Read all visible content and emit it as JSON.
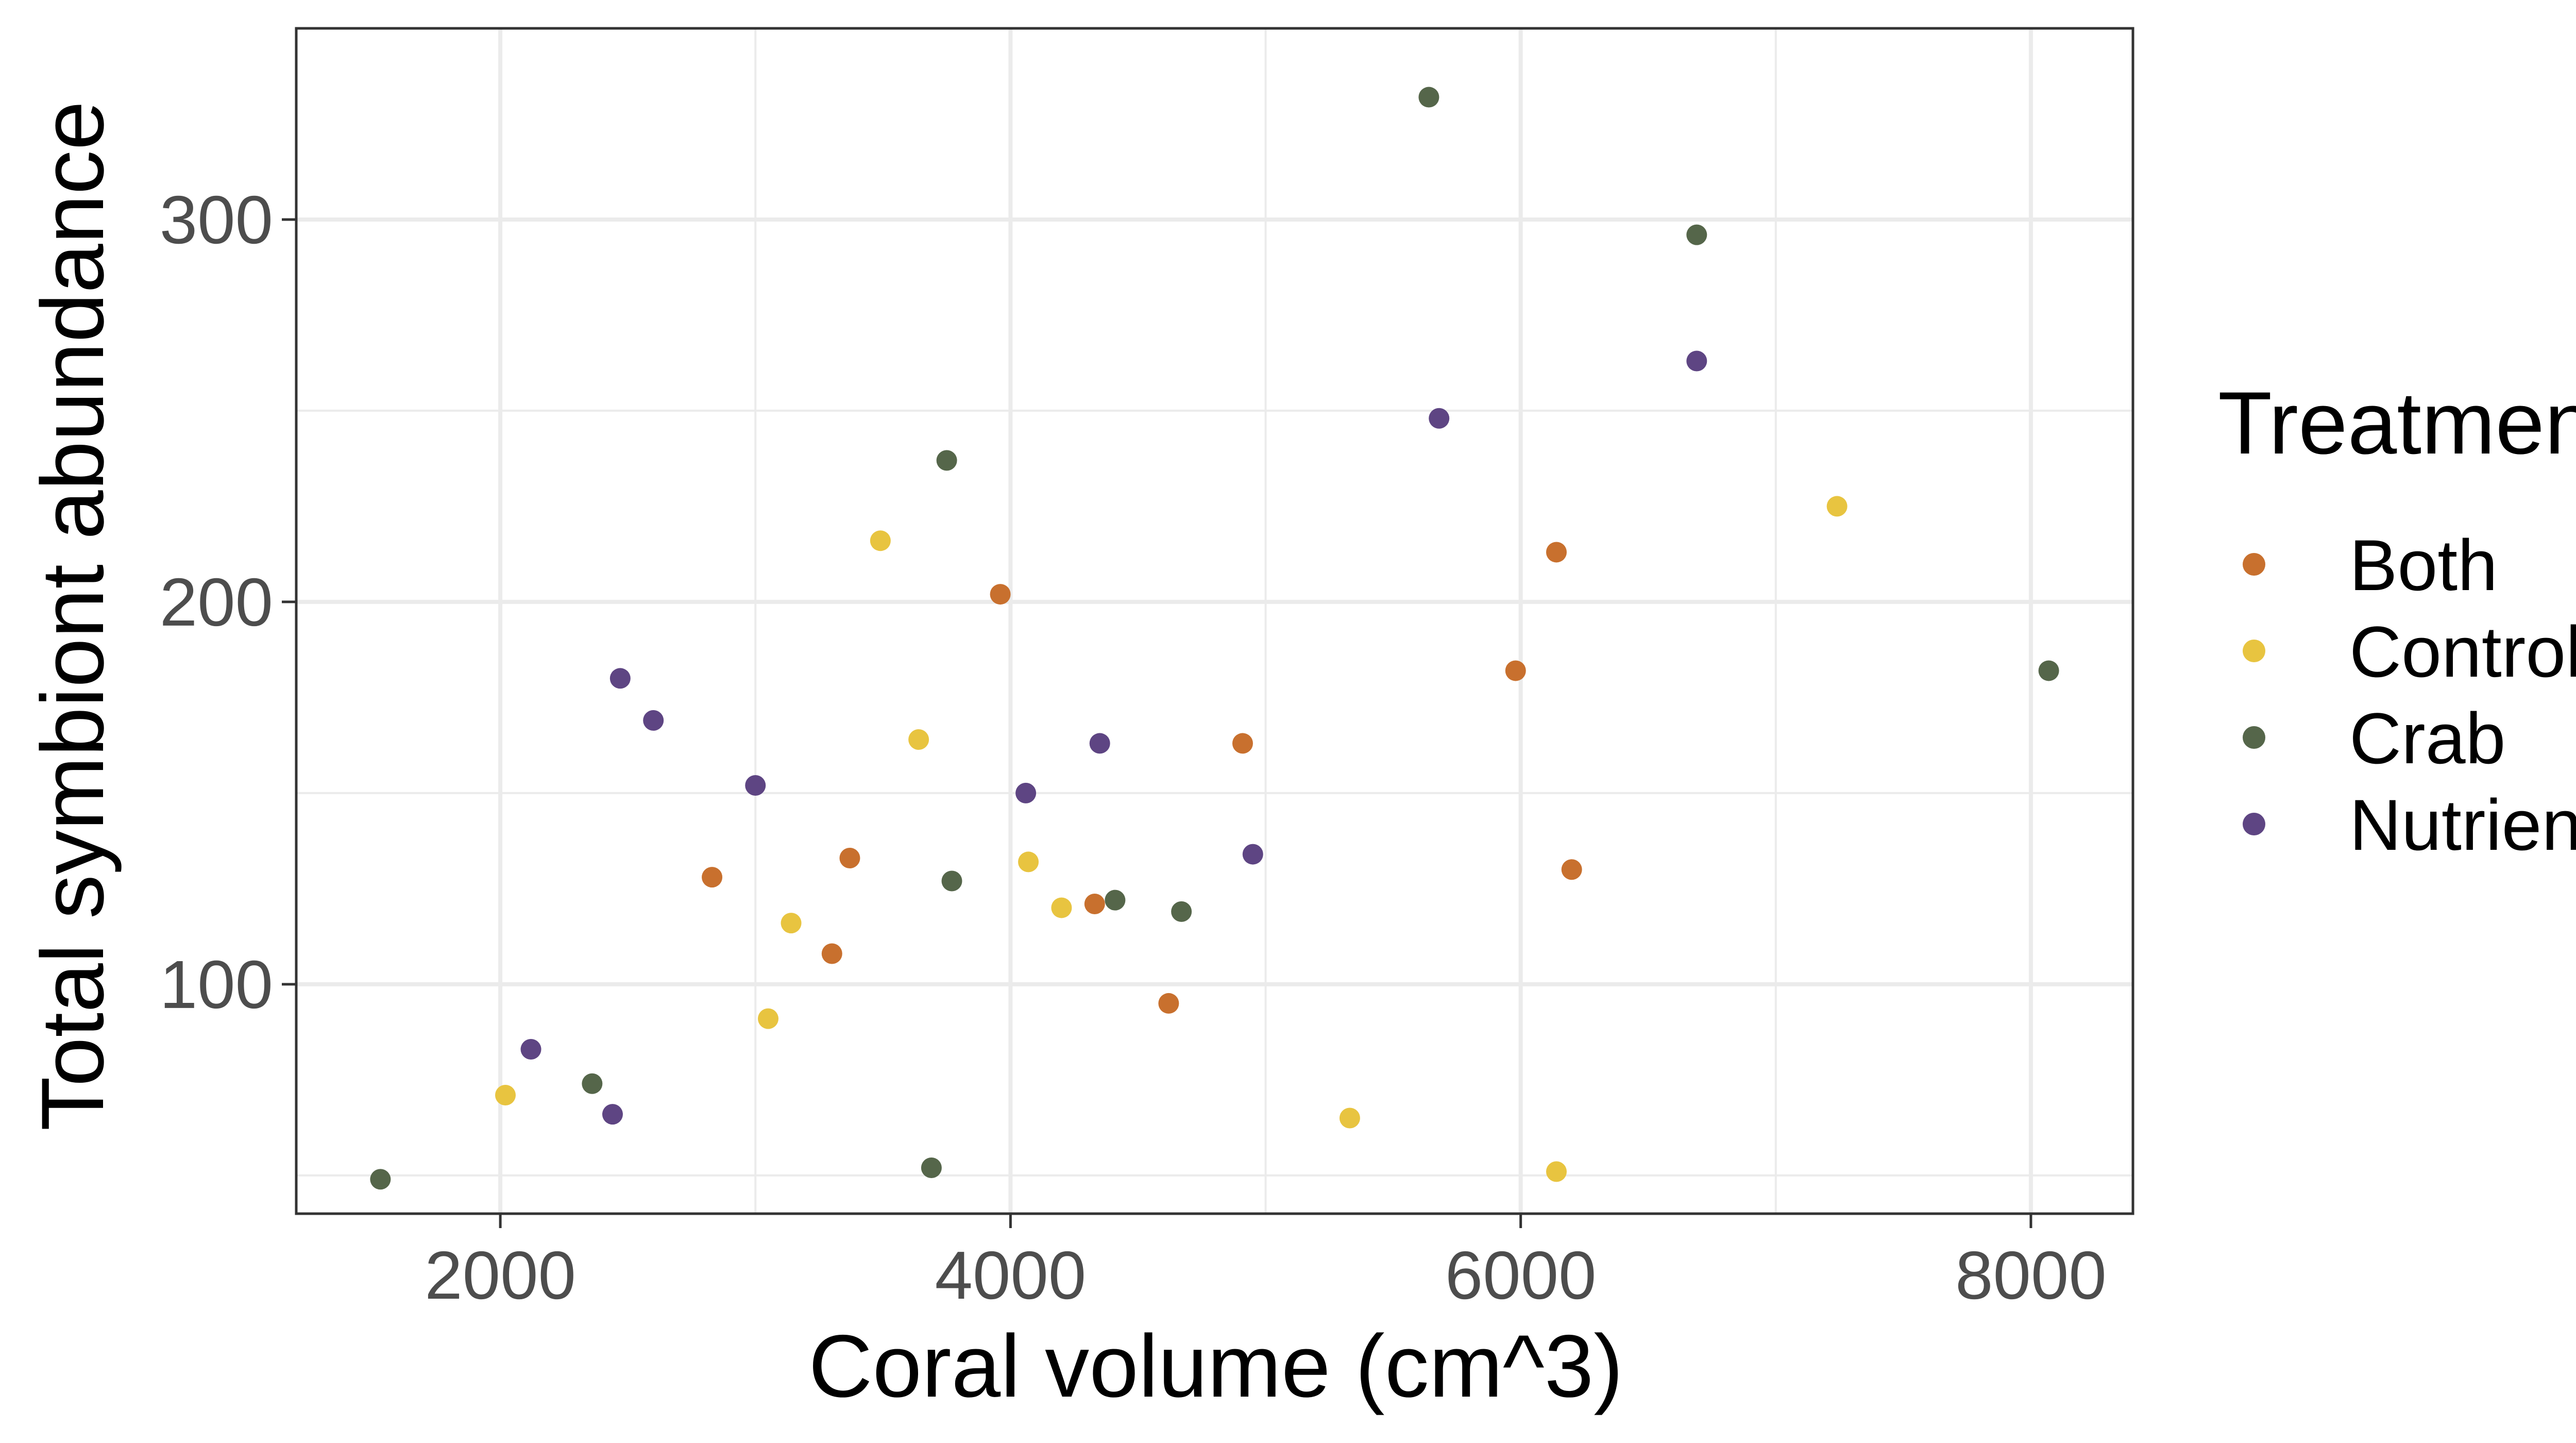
{
  "chart_data": {
    "type": "scatter",
    "xlabel": "Coral volume (cm^3)",
    "ylabel": "Total symbiont abundance",
    "xlim": [
      1200,
      8400
    ],
    "ylim": [
      40,
      350
    ],
    "xticks": [
      2000,
      4000,
      6000,
      8000
    ],
    "yticks": [
      100,
      200,
      300
    ],
    "x_minor": [
      3000,
      5000,
      7000
    ],
    "y_minor": [
      50,
      150,
      250
    ],
    "grid": true,
    "legend": {
      "title": "Treatment",
      "position": "right"
    },
    "series": [
      {
        "name": "Both",
        "color": "#c8702e",
        "points": [
          {
            "x": 2830,
            "y": 128
          },
          {
            "x": 3300,
            "y": 108
          },
          {
            "x": 3370,
            "y": 133
          },
          {
            "x": 3960,
            "y": 202
          },
          {
            "x": 4330,
            "y": 121
          },
          {
            "x": 4620,
            "y": 95
          },
          {
            "x": 4910,
            "y": 163
          },
          {
            "x": 5980,
            "y": 182
          },
          {
            "x": 6140,
            "y": 213
          },
          {
            "x": 6200,
            "y": 130
          }
        ]
      },
      {
        "name": "Control",
        "color": "#e8c440",
        "points": [
          {
            "x": 2020,
            "y": 71
          },
          {
            "x": 3050,
            "y": 91
          },
          {
            "x": 3140,
            "y": 116
          },
          {
            "x": 3490,
            "y": 216
          },
          {
            "x": 3640,
            "y": 164
          },
          {
            "x": 4070,
            "y": 132
          },
          {
            "x": 4200,
            "y": 120
          },
          {
            "x": 5330,
            "y": 65
          },
          {
            "x": 6140,
            "y": 51
          },
          {
            "x": 7240,
            "y": 225
          }
        ]
      },
      {
        "name": "Crab",
        "color": "#55664a",
        "points": [
          {
            "x": 1530,
            "y": 49
          },
          {
            "x": 2360,
            "y": 74
          },
          {
            "x": 3690,
            "y": 52
          },
          {
            "x": 3750,
            "y": 237
          },
          {
            "x": 3770,
            "y": 127
          },
          {
            "x": 4410,
            "y": 122
          },
          {
            "x": 4670,
            "y": 119
          },
          {
            "x": 5640,
            "y": 332
          },
          {
            "x": 6690,
            "y": 296
          },
          {
            "x": 8070,
            "y": 182
          }
        ]
      },
      {
        "name": "Nutrient",
        "color": "#5e4583",
        "points": [
          {
            "x": 2120,
            "y": 83
          },
          {
            "x": 2440,
            "y": 66
          },
          {
            "x": 2470,
            "y": 180
          },
          {
            "x": 2600,
            "y": 169
          },
          {
            "x": 3000,
            "y": 152
          },
          {
            "x": 4060,
            "y": 150
          },
          {
            "x": 4350,
            "y": 163
          },
          {
            "x": 4950,
            "y": 134
          },
          {
            "x": 5680,
            "y": 248
          },
          {
            "x": 6690,
            "y": 263
          }
        ]
      }
    ]
  }
}
